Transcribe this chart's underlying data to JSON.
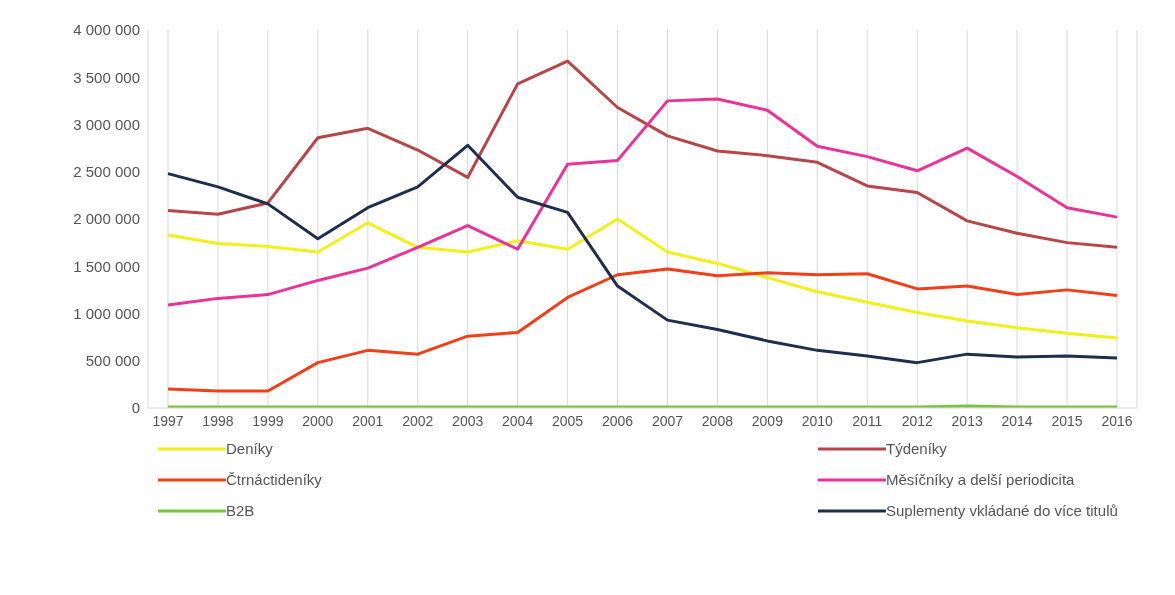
{
  "chart_data": {
    "type": "line",
    "categories": [
      "1997",
      "1998",
      "1999",
      "2000",
      "2001",
      "2002",
      "2003",
      "2004",
      "2005",
      "2006",
      "2007",
      "2008",
      "2009",
      "2010",
      "2011",
      "2012",
      "2013",
      "2014",
      "2015",
      "2016"
    ],
    "series": [
      {
        "name": "Deníky",
        "color": "#f2f01c",
        "values": [
          1830000,
          1740000,
          1710000,
          1650000,
          1960000,
          1700000,
          1650000,
          1770000,
          1680000,
          2000000,
          1650000,
          1530000,
          1380000,
          1230000,
          1120000,
          1010000,
          920000,
          850000,
          790000,
          740000
        ]
      },
      {
        "name": "Týdeníky",
        "color": "#b5464a",
        "values": [
          2090000,
          2050000,
          2170000,
          2860000,
          2960000,
          2730000,
          2440000,
          3430000,
          3670000,
          3180000,
          2880000,
          2720000,
          2670000,
          2600000,
          2350000,
          2280000,
          1980000,
          1850000,
          1750000,
          1700000
        ]
      },
      {
        "name": "Čtrnáctideníky",
        "color": "#f0401a",
        "values": [
          200000,
          180000,
          180000,
          480000,
          610000,
          570000,
          760000,
          800000,
          1170000,
          1410000,
          1470000,
          1400000,
          1430000,
          1410000,
          1420000,
          1260000,
          1290000,
          1200000,
          1250000,
          1190000
        ]
      },
      {
        "name": "Měsíčníky a delší periodicita",
        "color": "#e8349a",
        "values": [
          1090000,
          1160000,
          1200000,
          1350000,
          1480000,
          1700000,
          1930000,
          1680000,
          2580000,
          2620000,
          3250000,
          3270000,
          3150000,
          2770000,
          2660000,
          2510000,
          2750000,
          2450000,
          2120000,
          2020000
        ]
      },
      {
        "name": "B2B",
        "color": "#7cc242",
        "values": [
          10000,
          10000,
          10000,
          10000,
          10000,
          10000,
          10000,
          10000,
          10000,
          10000,
          10000,
          10000,
          10000,
          10000,
          10000,
          10000,
          20000,
          10000,
          10000,
          10000
        ]
      },
      {
        "name": "Suplementy vkládané do více titulů",
        "color": "#1f2d4e",
        "values": [
          2480000,
          2340000,
          2160000,
          1790000,
          2120000,
          2340000,
          2780000,
          2230000,
          2070000,
          1290000,
          930000,
          830000,
          710000,
          610000,
          550000,
          480000,
          570000,
          540000,
          550000,
          530000
        ]
      }
    ],
    "ylim": [
      0,
      4000000
    ],
    "yticks": [
      0,
      {
        "value": 500000,
        "label": "500 000"
      },
      {
        "value": 1000000,
        "label": "1 000 000"
      },
      {
        "value": 1500000,
        "label": "1 500 000"
      },
      {
        "value": 2000000,
        "label": "2 000 000"
      },
      {
        "value": 2500000,
        "label": "2 500 000"
      },
      {
        "value": 3000000,
        "label": "3 000 000"
      },
      {
        "value": 3500000,
        "label": "3 500 000"
      },
      {
        "value": 4000000,
        "label": "4 000 000"
      }
    ],
    "grid": "x",
    "legend": "bottom",
    "marker": "none",
    "line_style": "solid"
  }
}
